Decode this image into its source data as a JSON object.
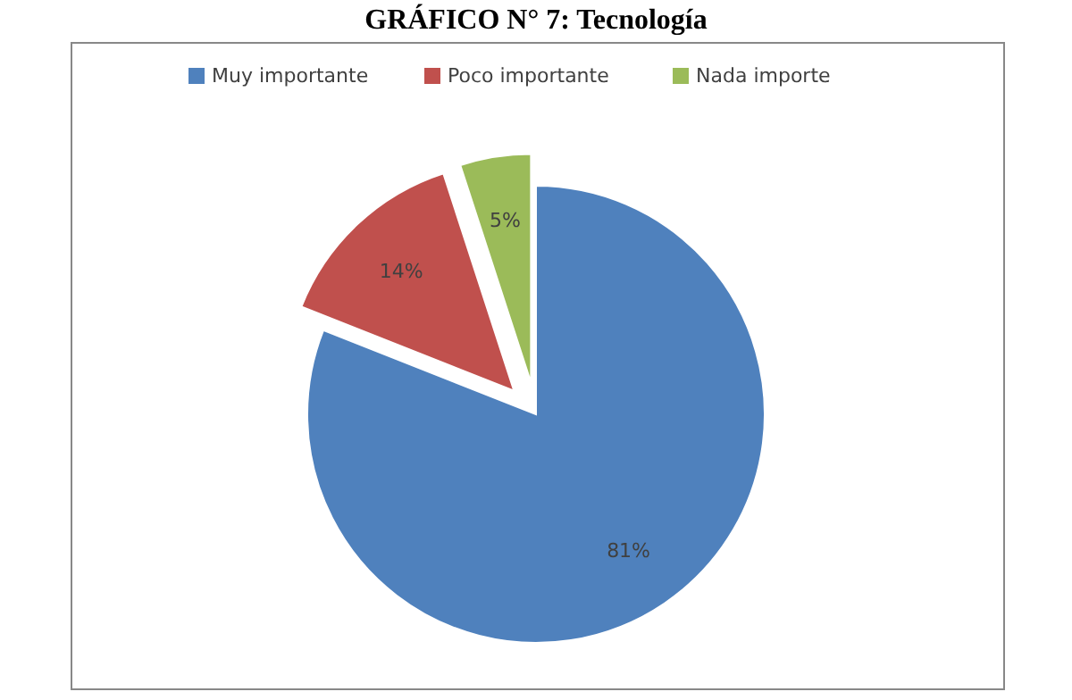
{
  "chart_data": {
    "type": "pie",
    "title": "GRÁFICO N° 7: Tecnología",
    "categories": [
      "Muy importante",
      "Poco importante",
      "Nada importe"
    ],
    "values": [
      81,
      14,
      5
    ],
    "colors": [
      "#4f81bd",
      "#c0504d",
      "#9bbb59"
    ],
    "value_labels": [
      "81%",
      "14%",
      "5%"
    ],
    "legend": "top"
  }
}
